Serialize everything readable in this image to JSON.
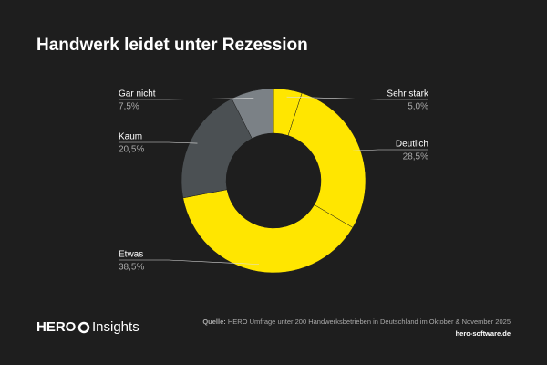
{
  "chart_data": {
    "type": "donut",
    "title": "Handwerk leidet unter Rezession",
    "categories": [
      "Sehr stark",
      "Deutlich",
      "Etwas",
      "Kaum",
      "Gar nicht"
    ],
    "values": [
      5.0,
      28.5,
      38.5,
      20.5,
      7.5
    ],
    "value_labels": [
      "5,0%",
      "28,5%",
      "38,5%",
      "20,5%",
      "7,5%"
    ],
    "colors": [
      "#ffe600",
      "#ffe600",
      "#ffe600",
      "#4b5053",
      "#7b8186"
    ]
  },
  "footer": {
    "brand": "HERO",
    "brand_suffix": "Insights",
    "source_label": "Quelle:",
    "source": "HERO Umfrage unter 200 Handwerksbetrieben in Deutschland im Oktober & November 2025",
    "website": "hero-software.de"
  }
}
